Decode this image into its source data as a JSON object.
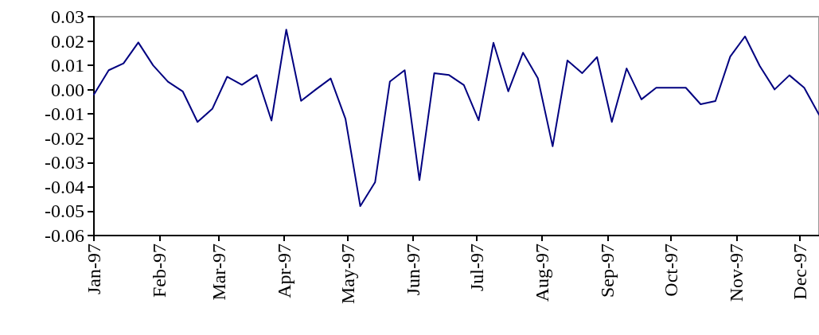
{
  "chart_data": {
    "type": "line",
    "x": [
      "1997-01-01",
      "1997-01-08",
      "1997-01-15",
      "1997-01-22",
      "1997-01-29",
      "1997-02-05",
      "1997-02-12",
      "1997-02-19",
      "1997-02-26",
      "1997-03-05",
      "1997-03-12",
      "1997-03-19",
      "1997-03-26",
      "1997-04-02",
      "1997-04-09",
      "1997-04-16",
      "1997-04-23",
      "1997-04-30",
      "1997-05-07",
      "1997-05-14",
      "1997-05-21",
      "1997-05-28",
      "1997-06-04",
      "1997-06-11",
      "1997-06-18",
      "1997-06-25",
      "1997-07-02",
      "1997-07-09",
      "1997-07-16",
      "1997-07-23",
      "1997-07-30",
      "1997-08-06",
      "1997-08-13",
      "1997-08-20",
      "1997-08-27",
      "1997-09-03",
      "1997-09-10",
      "1997-09-17",
      "1997-09-24",
      "1997-10-01",
      "1997-10-08",
      "1997-10-15",
      "1997-10-22",
      "1997-10-29",
      "1997-11-05",
      "1997-11-12",
      "1997-11-19",
      "1997-11-26",
      "1997-12-03",
      "1997-12-10"
    ],
    "series": [
      {
        "color": "#000080",
        "values": [
          -0.002,
          0.008,
          0.0108,
          0.0194,
          0.01,
          0.0033,
          -0.0007,
          -0.0133,
          -0.0079,
          0.0053,
          0.002,
          0.006,
          -0.0127,
          0.0247,
          -0.0046,
          0.0001,
          0.0046,
          -0.012,
          -0.0479,
          -0.0381,
          0.0033,
          0.008,
          -0.0372,
          0.0068,
          0.006,
          0.0019,
          -0.0126,
          0.0193,
          -0.0007,
          0.0152,
          0.0047,
          -0.0233,
          0.012,
          0.0068,
          0.0134,
          -0.0133,
          0.0087,
          -0.004,
          0.0008,
          0.0008,
          0.0008,
          -0.006,
          -0.0047,
          0.0136,
          0.0219,
          0.0097,
          0.0001,
          0.0059,
          0.0008,
          -0.0103
        ]
      }
    ],
    "xlim": [
      "1997-01-01",
      "1997-12-10"
    ],
    "xticks": [
      {
        "value": "1997-01-01",
        "label": "Jan-97"
      },
      {
        "value": "1997-02-01",
        "label": "Feb-97"
      },
      {
        "value": "1997-03-01",
        "label": "Mar-97"
      },
      {
        "value": "1997-04-01",
        "label": "Apr-97"
      },
      {
        "value": "1997-05-01",
        "label": "May-97"
      },
      {
        "value": "1997-06-01",
        "label": "Jun-97"
      },
      {
        "value": "1997-07-01",
        "label": "Jul-97"
      },
      {
        "value": "1997-08-01",
        "label": "Aug-97"
      },
      {
        "value": "1997-09-01",
        "label": "Sep-97"
      },
      {
        "value": "1997-10-01",
        "label": "Oct-97"
      },
      {
        "value": "1997-11-01",
        "label": "Nov-97"
      },
      {
        "value": "1997-12-01",
        "label": "Dec-97"
      }
    ],
    "ylim": [
      -0.06,
      0.03
    ],
    "yticks": [
      -0.06,
      -0.05,
      -0.04,
      -0.03,
      -0.02,
      -0.01,
      {
        "value": 0,
        "label": "0.00"
      },
      0.01,
      0.02,
      0.03
    ],
    "grid": false,
    "marker": "none",
    "line_style": "solid"
  }
}
